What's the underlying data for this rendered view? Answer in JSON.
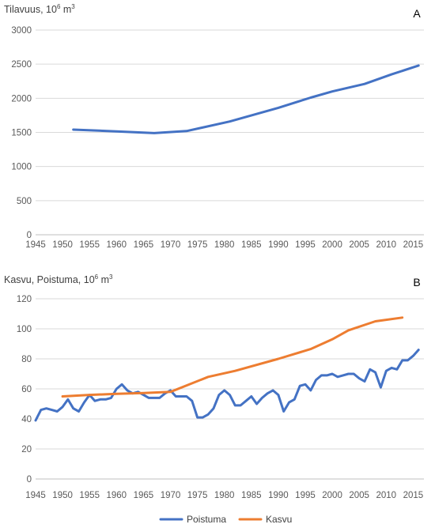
{
  "chart_data": [
    {
      "type": "line",
      "title": "Tilavuus, 10",
      "title_sup": "6",
      "title_unit": " m",
      "title_unit_sup": "3",
      "panel_label": "A",
      "xlim": [
        1945,
        2017
      ],
      "ylim": [
        0,
        3000
      ],
      "x_ticks": [
        1945,
        1950,
        1955,
        1960,
        1965,
        1970,
        1975,
        1980,
        1985,
        1990,
        1995,
        2000,
        2005,
        2010,
        2015
      ],
      "y_ticks": [
        0,
        500,
        1000,
        1500,
        2000,
        2500,
        3000
      ],
      "grid": "horizontal",
      "series": [
        {
          "color": "#4472C4",
          "x": [
            1952,
            1960,
            1967,
            1973,
            1981,
            1990,
            1996,
            2000,
            2006,
            2011,
            2016
          ],
          "y": [
            1540,
            1515,
            1490,
            1520,
            1660,
            1860,
            2010,
            2100,
            2210,
            2350,
            2480
          ]
        }
      ]
    },
    {
      "type": "line",
      "title": "Kasvu, Poistuma, 10",
      "title_sup": "6",
      "title_unit": " m",
      "title_unit_sup": "3",
      "panel_label": "B",
      "xlim": [
        1945,
        2017
      ],
      "ylim": [
        0,
        120
      ],
      "x_ticks": [
        1945,
        1950,
        1955,
        1960,
        1965,
        1970,
        1975,
        1980,
        1985,
        1990,
        1995,
        2000,
        2005,
        2010,
        2015
      ],
      "y_ticks": [
        0,
        20,
        40,
        60,
        80,
        100,
        120
      ],
      "grid": "horizontal",
      "legend_position": "bottom",
      "series": [
        {
          "name": "Poistuma",
          "color": "#4472C4",
          "x": [
            1945,
            1946,
            1947,
            1948,
            1949,
            1950,
            1951,
            1952,
            1953,
            1954,
            1955,
            1956,
            1957,
            1958,
            1959,
            1960,
            1961,
            1962,
            1963,
            1964,
            1965,
            1966,
            1967,
            1968,
            1969,
            1970,
            1971,
            1972,
            1973,
            1974,
            1975,
            1976,
            1977,
            1978,
            1979,
            1980,
            1981,
            1982,
            1983,
            1984,
            1985,
            1986,
            1987,
            1988,
            1989,
            1990,
            1991,
            1992,
            1993,
            1994,
            1995,
            1996,
            1997,
            1998,
            1999,
            2000,
            2001,
            2002,
            2003,
            2004,
            2005,
            2006,
            2007,
            2008,
            2009,
            2010,
            2011,
            2012,
            2013,
            2014,
            2015,
            2016
          ],
          "y": [
            39,
            46,
            47,
            46,
            45,
            48,
            53,
            47,
            45,
            51,
            56,
            52,
            53,
            53,
            54,
            60,
            63,
            59,
            57,
            58,
            56,
            54,
            54,
            54,
            57,
            59,
            55,
            55,
            55,
            52,
            41,
            41,
            43,
            47,
            56,
            59,
            56,
            49,
            49,
            52,
            55,
            50,
            54,
            57,
            59,
            56,
            45,
            51,
            53,
            62,
            63,
            59,
            66,
            69,
            69,
            70,
            68,
            69,
            70,
            70,
            67,
            65,
            73,
            71,
            61,
            72,
            74,
            73,
            79,
            79,
            82,
            86
          ]
        },
        {
          "name": "Kasvu",
          "color": "#ED7D31",
          "x": [
            1950,
            1955,
            1960,
            1965,
            1970,
            1977,
            1982,
            1990,
            1996,
            2000,
            2003,
            2008,
            2013
          ],
          "y": [
            55,
            56,
            56.7,
            57.2,
            58,
            68,
            72,
            80,
            86.5,
            93,
            99,
            105,
            107.5
          ]
        }
      ]
    }
  ]
}
